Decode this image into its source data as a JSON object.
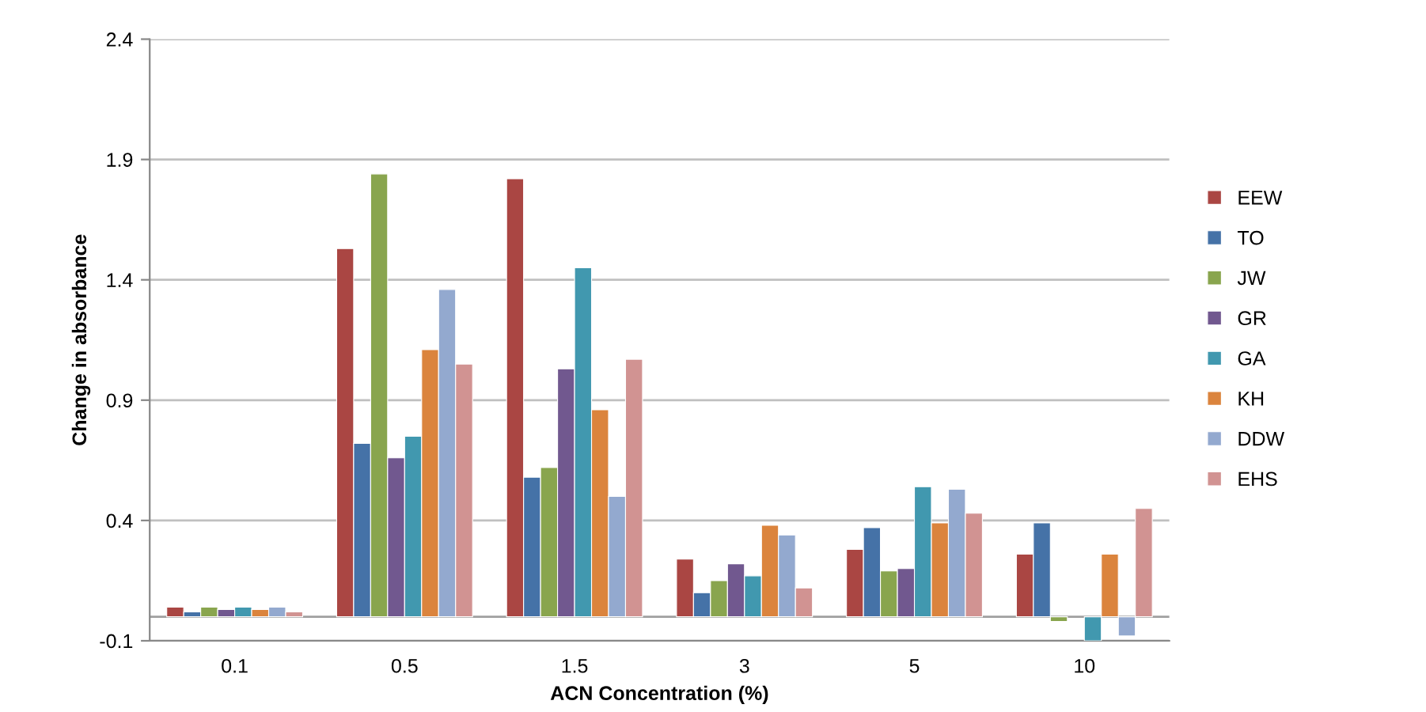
{
  "chart_data": {
    "type": "bar",
    "xlabel": "ACN Concentration (%)",
    "ylabel": "Change in absorbance",
    "categories": [
      "0.1",
      "0.5",
      "1.5",
      "3",
      "5",
      "10"
    ],
    "series": [
      {
        "name": "EEW",
        "color": "#aa4643",
        "values": [
          0.04,
          1.53,
          1.82,
          0.24,
          0.28,
          0.26
        ]
      },
      {
        "name": "TO",
        "color": "#4572a7",
        "values": [
          0.02,
          0.72,
          0.58,
          0.1,
          0.37,
          0.39
        ]
      },
      {
        "name": "JW",
        "color": "#89a54e",
        "values": [
          0.04,
          1.84,
          0.62,
          0.15,
          0.19,
          -0.02
        ]
      },
      {
        "name": "GR",
        "color": "#71588f",
        "values": [
          0.03,
          0.66,
          1.03,
          0.22,
          0.2,
          null
        ]
      },
      {
        "name": "GA",
        "color": "#4198af",
        "values": [
          0.04,
          0.75,
          1.45,
          0.17,
          0.54,
          -0.1
        ]
      },
      {
        "name": "KH",
        "color": "#db843d",
        "values": [
          0.03,
          1.11,
          0.86,
          0.38,
          0.39,
          0.26
        ]
      },
      {
        "name": "DDW",
        "color": "#93a9cf",
        "values": [
          0.04,
          1.36,
          0.5,
          0.34,
          0.53,
          -0.08
        ]
      },
      {
        "name": "EHS",
        "color": "#d19392",
        "values": [
          0.02,
          1.05,
          1.07,
          0.12,
          0.43,
          0.45
        ]
      }
    ],
    "ylim": [
      -0.1,
      2.4
    ],
    "yticks": [
      -0.1,
      0.4,
      0.9,
      1.4,
      1.9,
      2.4
    ],
    "grid": "y",
    "legend": "right"
  }
}
